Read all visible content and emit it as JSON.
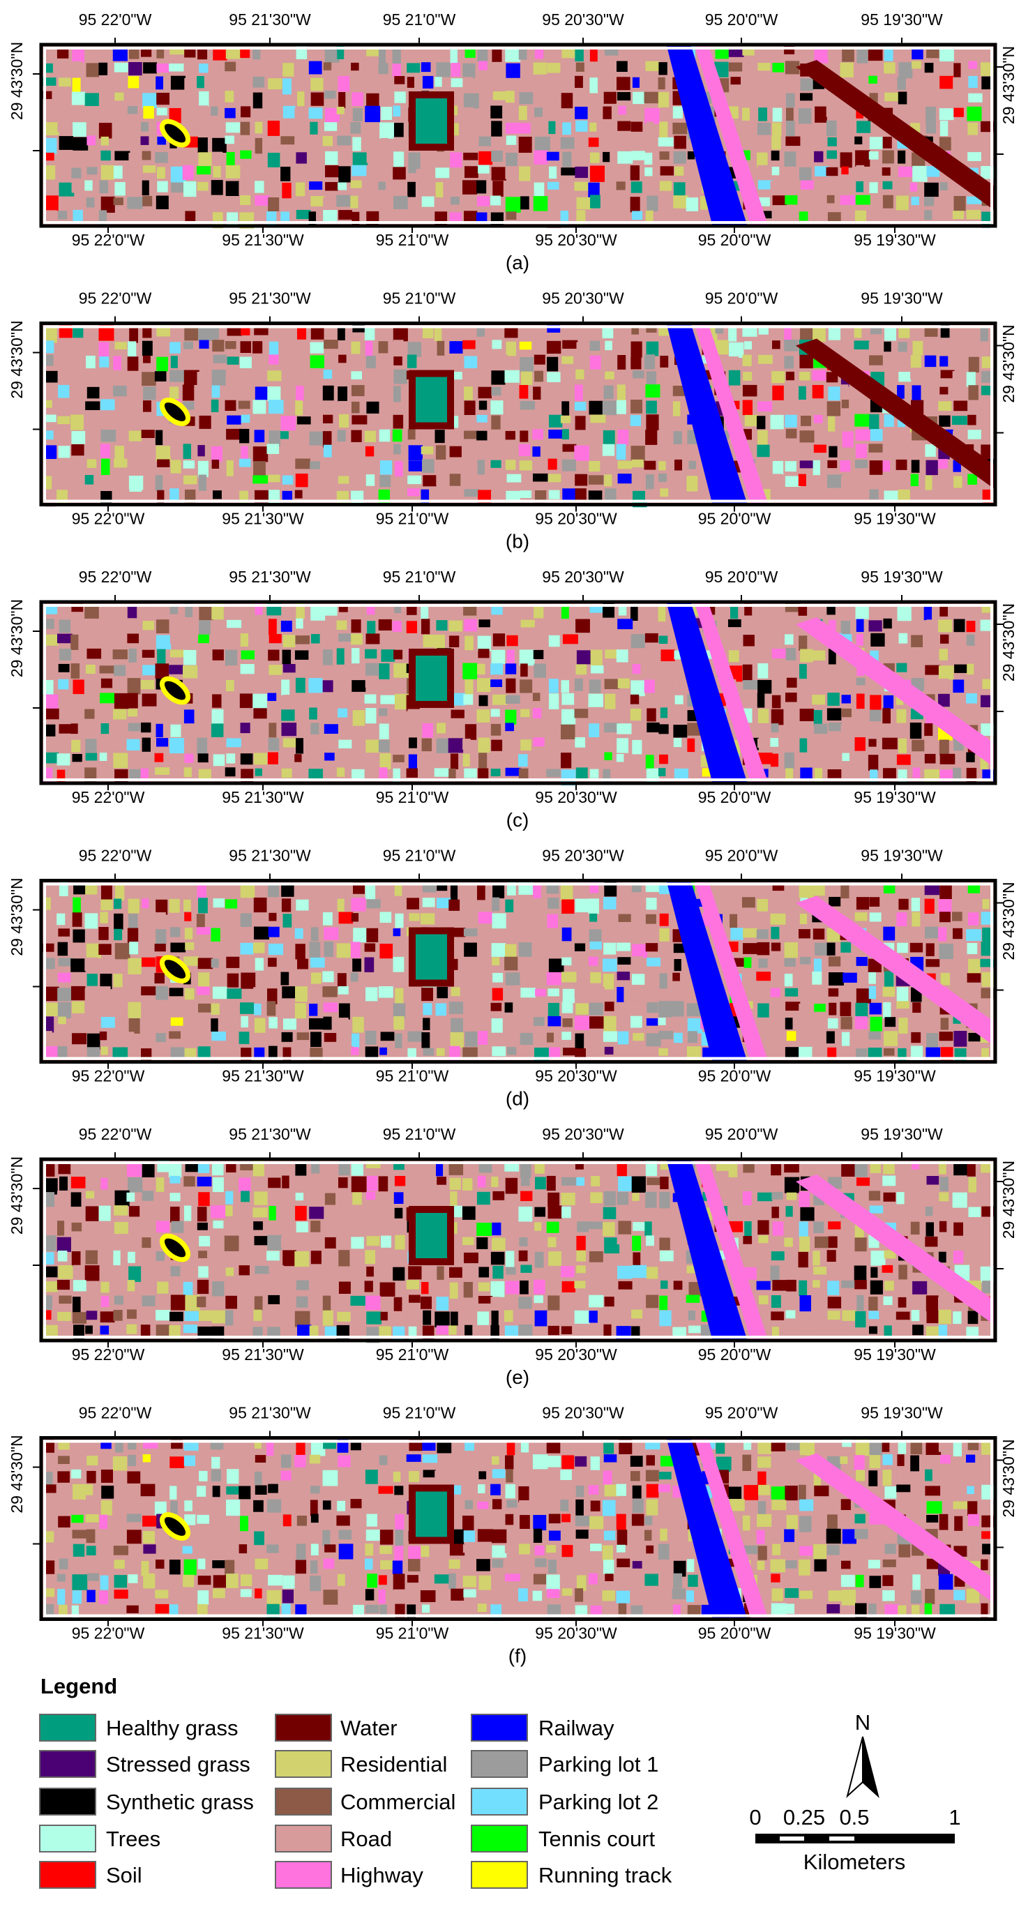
{
  "panels": [
    {
      "label": "(a)"
    },
    {
      "label": "(b)"
    },
    {
      "label": "(c)"
    },
    {
      "label": "(d)"
    },
    {
      "label": "(e)"
    },
    {
      "label": "(f)"
    }
  ],
  "lon_labels": [
    "95 22'0\"W",
    "95 21'30\"W",
    "95 21'0\"W",
    "95 20'30\"W",
    "95 20'0\"W",
    "95 19'30\"W"
  ],
  "lat_label": "29 43'30\"N",
  "legend": {
    "title": "Legend",
    "items": [
      {
        "name": "Healthy grass",
        "color": "#009e7e"
      },
      {
        "name": "Stressed grass",
        "color": "#4b0073"
      },
      {
        "name": "Synthetic grass",
        "color": "#000000"
      },
      {
        "name": "Trees",
        "color": "#b0ffe6"
      },
      {
        "name": "Soil",
        "color": "#ff0000"
      },
      {
        "name": "Water",
        "color": "#730000"
      },
      {
        "name": "Residential",
        "color": "#d2d26e"
      },
      {
        "name": "Commercial",
        "color": "#8c5a46"
      },
      {
        "name": "Road",
        "color": "#d79b9b"
      },
      {
        "name": "Highway",
        "color": "#ff73df"
      },
      {
        "name": "Railway",
        "color": "#0000ff"
      },
      {
        "name": "Parking lot 1",
        "color": "#9c9c9c"
      },
      {
        "name": "Parking lot 2",
        "color": "#73dfff"
      },
      {
        "name": "Tennis court",
        "color": "#00ff00"
      },
      {
        "name": "Running track",
        "color": "#ffff00"
      }
    ]
  },
  "north": "N",
  "scale": {
    "ticks": [
      "0",
      "0.25",
      "0.5",
      "1"
    ],
    "unit": "Kilometers"
  }
}
